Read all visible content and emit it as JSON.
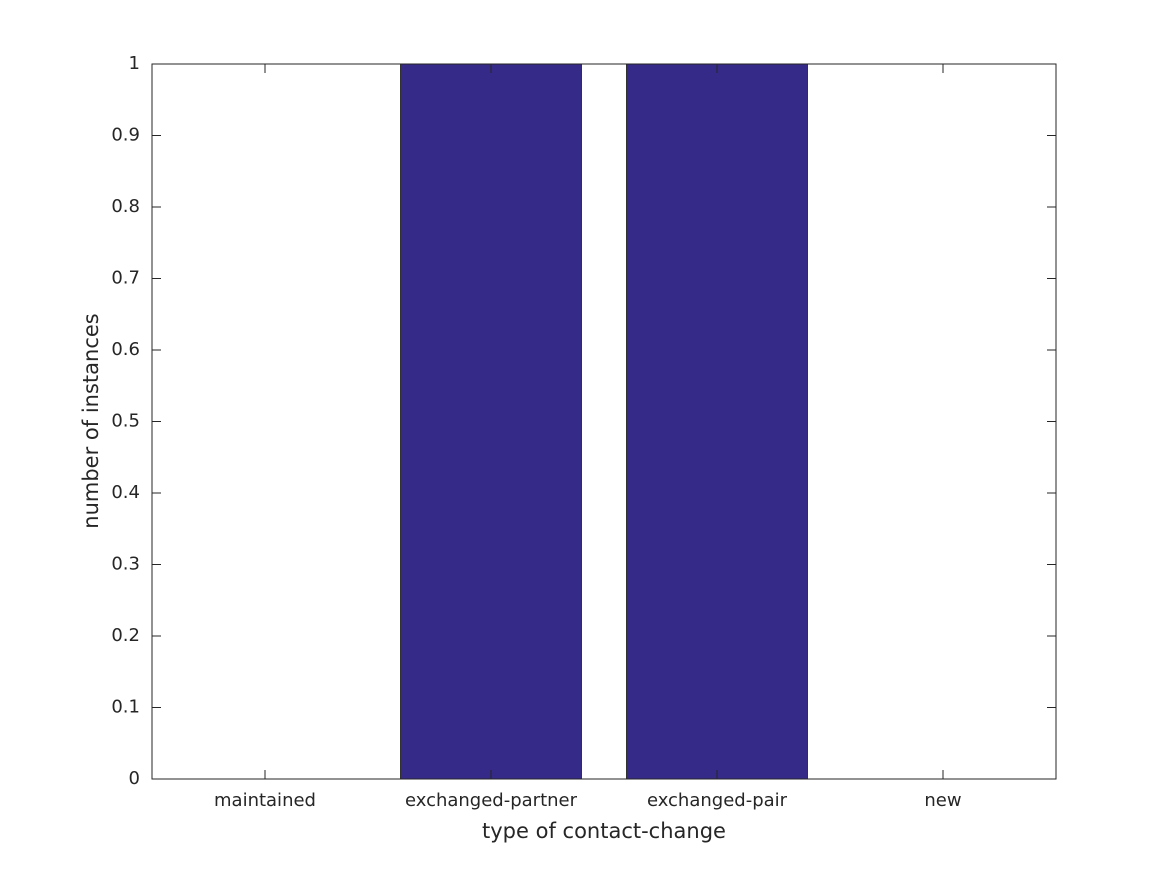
{
  "chart_data": {
    "type": "bar",
    "xlabel": "type of contact-change",
    "ylabel": "number of instances",
    "categories": [
      "maintained",
      "exchanged-partner",
      "exchanged-pair",
      "new"
    ],
    "values": [
      0,
      1,
      1,
      0
    ],
    "color": "#352a87",
    "ylim": [
      0,
      1
    ],
    "yticks": [
      0,
      0.1,
      0.2,
      0.3,
      0.4,
      0.5,
      0.6,
      0.7,
      0.8,
      0.9,
      1
    ],
    "grid": false
  }
}
